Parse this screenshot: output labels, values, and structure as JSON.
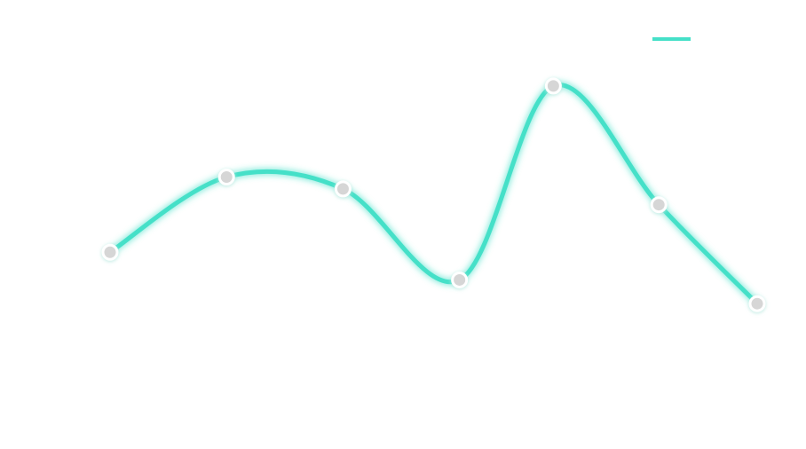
{
  "chart_data": {
    "type": "line",
    "title": "",
    "xlabel": "",
    "ylabel": "",
    "x": [
      1,
      2,
      3,
      4,
      5,
      6,
      7
    ],
    "ylim": [
      0,
      10
    ],
    "grid": false,
    "legend": "top-right",
    "series": [
      {
        "values": [
          4.3,
          6.2,
          5.9,
          3.6,
          8.5,
          5.5,
          3.0
        ],
        "color": "#45e0c8",
        "marker_color": "#d6d6d6",
        "smooth": true
      }
    ]
  }
}
